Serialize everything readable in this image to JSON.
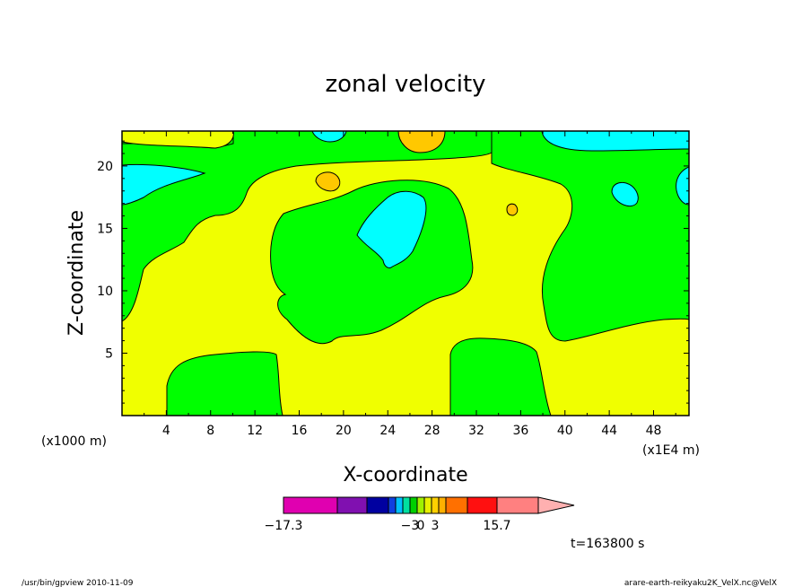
{
  "chart_data": {
    "type": "contour",
    "title": "zonal velocity",
    "xlabel": "X-coordinate",
    "ylabel": "Z-coordinate",
    "x_unit_left": "(x1000 m)",
    "x_unit_right": "(x1E4 m)",
    "xlim": [
      0,
      51.2
    ],
    "ylim": [
      0,
      22.8
    ],
    "xticks": [
      "4",
      "8",
      "12",
      "16",
      "20",
      "24",
      "28",
      "32",
      "36",
      "40",
      "44",
      "48"
    ],
    "yticks": [
      "5",
      "10",
      "15",
      "20"
    ],
    "colorbar": {
      "labels": [
        "−17.3",
        "−3",
        "0",
        "3",
        "15.7"
      ],
      "colors": [
        "#e000b0",
        "#8010b0",
        "#0000a0",
        "#1040e0",
        "#00c0ff",
        "#00e0a0",
        "#00d000",
        "#a0f000",
        "#e8f000",
        "#ffd000",
        "#ffb000",
        "#ff7000",
        "#ff1010",
        "#ff8080"
      ],
      "extend_color": "#ffb0b0"
    },
    "colors": {
      "positive_weak": "#f0ff00",
      "negative_weak": "#00ff00",
      "negative_mid": "#00ffff",
      "positive_mid": "#ffc800"
    },
    "time_label": "t=163800 s",
    "footer_left": "/usr/bin/gpview   2010-11-09",
    "footer_right": "arare-earth-reikyaku2K_VelX.nc@VelX"
  }
}
